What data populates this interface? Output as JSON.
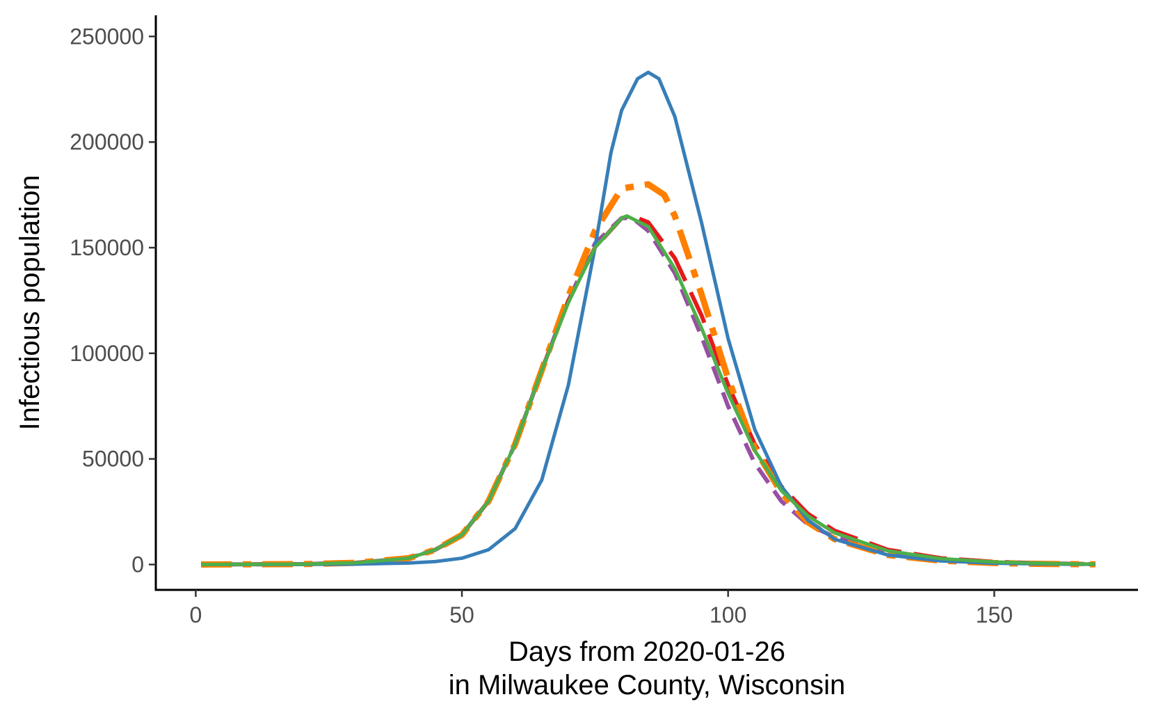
{
  "chart_data": {
    "type": "line",
    "title": "",
    "xlabel_line1": "Days from 2020-01-26",
    "xlabel_line2": "in Milwaukee County, Wisconsin",
    "ylabel": "Infectious population",
    "xlim": [
      -7.5,
      177
    ],
    "ylim": [
      -12000,
      260000
    ],
    "x_ticks": [
      0,
      50,
      100,
      150
    ],
    "y_ticks": [
      0,
      50000,
      100000,
      150000,
      200000,
      250000
    ],
    "grid": false,
    "legend": "none",
    "series": [
      {
        "color": "#e41a1c",
        "dash": "long-dash",
        "x": [
          1,
          20,
          30,
          40,
          45,
          50,
          55,
          60,
          65,
          70,
          75,
          80,
          82,
          85,
          90,
          95,
          100,
          105,
          110,
          115,
          120,
          130,
          140,
          150,
          160,
          169
        ],
        "y": [
          0,
          200,
          800,
          3000,
          7000,
          14000,
          30000,
          57000,
          92000,
          125000,
          150000,
          164000,
          165000,
          162000,
          145000,
          118000,
          85000,
          57000,
          37000,
          24000,
          16000,
          7000,
          3000,
          1300,
          500,
          200
        ]
      },
      {
        "color": "#984ea3",
        "dash": "dash",
        "x": [
          1,
          20,
          30,
          40,
          45,
          50,
          55,
          60,
          65,
          70,
          75,
          80,
          82,
          85,
          90,
          95,
          100,
          105,
          110,
          115,
          120,
          130,
          140,
          150,
          160,
          169
        ],
        "y": [
          0,
          200,
          800,
          3000,
          7000,
          14000,
          30000,
          57000,
          92000,
          125000,
          152000,
          164000,
          164000,
          158000,
          138000,
          108000,
          75000,
          48000,
          30000,
          19000,
          13000,
          6000,
          2500,
          1000,
          400,
          150
        ]
      },
      {
        "color": "#ff7f00",
        "dash": "dash-dot",
        "x": [
          1,
          20,
          30,
          40,
          45,
          50,
          55,
          60,
          65,
          70,
          75,
          80,
          85,
          88,
          90,
          95,
          100,
          105,
          110,
          115,
          120,
          130,
          140,
          150,
          160,
          169
        ],
        "y": [
          0,
          200,
          800,
          3000,
          7000,
          14000,
          30000,
          57000,
          92000,
          127000,
          158000,
          178000,
          180000,
          175000,
          165000,
          128000,
          88000,
          55000,
          34000,
          20000,
          12000,
          4500,
          1800,
          700,
          250,
          100
        ]
      },
      {
        "color": "#377eb8",
        "dash": "solid",
        "x": [
          1,
          20,
          30,
          40,
          45,
          50,
          55,
          60,
          65,
          70,
          75,
          78,
          80,
          83,
          85,
          87,
          90,
          95,
          100,
          105,
          110,
          115,
          120,
          130,
          140,
          150,
          160,
          169
        ],
        "y": [
          0,
          50,
          200,
          700,
          1400,
          3000,
          7000,
          17000,
          40000,
          85000,
          150000,
          195000,
          215000,
          230000,
          233000,
          230000,
          212000,
          162000,
          107000,
          64000,
          37000,
          21000,
          12000,
          4500,
          1700,
          650,
          250,
          100
        ]
      },
      {
        "color": "#4daf4a",
        "dash": "solid",
        "x": [
          1,
          20,
          30,
          40,
          45,
          50,
          55,
          60,
          65,
          70,
          75,
          80,
          81,
          85,
          90,
          95,
          100,
          105,
          110,
          115,
          120,
          130,
          140,
          150,
          160,
          169
        ],
        "y": [
          0,
          200,
          800,
          3000,
          7000,
          14000,
          30000,
          57000,
          92000,
          124000,
          150000,
          164000,
          165000,
          160000,
          140000,
          112000,
          81000,
          54000,
          35000,
          23000,
          15000,
          6500,
          2800,
          1200,
          500,
          200
        ]
      }
    ]
  }
}
